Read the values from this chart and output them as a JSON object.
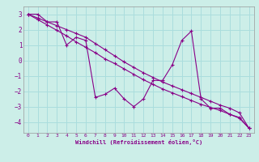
{
  "xlabel": "Windchill (Refroidissement éolien,°C)",
  "bg_color": "#cceee8",
  "grid_color": "#aadddd",
  "line_color": "#880088",
  "x_data": [
    0,
    1,
    2,
    3,
    4,
    5,
    6,
    7,
    8,
    9,
    10,
    11,
    12,
    13,
    14,
    15,
    16,
    17,
    18,
    19,
    20,
    21,
    22,
    23
  ],
  "y_jagged": [
    3.0,
    3.0,
    2.5,
    2.5,
    1.0,
    1.5,
    1.3,
    -2.4,
    -2.2,
    -1.8,
    -2.5,
    -3.0,
    -2.5,
    -1.3,
    -1.3,
    -0.3,
    1.3,
    1.9,
    -2.5,
    -3.1,
    -3.1,
    -3.5,
    -3.7,
    -4.4
  ],
  "y_line1": [
    3.0,
    2.65,
    2.3,
    1.95,
    1.6,
    1.2,
    0.85,
    0.5,
    0.1,
    -0.2,
    -0.55,
    -0.9,
    -1.25,
    -1.55,
    -1.85,
    -2.1,
    -2.35,
    -2.6,
    -2.85,
    -3.05,
    -3.25,
    -3.5,
    -3.75,
    -4.4
  ],
  "y_line2": [
    3.0,
    2.75,
    2.5,
    2.25,
    2.0,
    1.75,
    1.5,
    1.1,
    0.7,
    0.3,
    -0.1,
    -0.45,
    -0.8,
    -1.1,
    -1.4,
    -1.65,
    -1.9,
    -2.15,
    -2.4,
    -2.65,
    -2.9,
    -3.1,
    -3.4,
    -4.4
  ],
  "ylim": [
    -4.7,
    3.5
  ],
  "xlim": [
    -0.5,
    23.5
  ],
  "yticks": [
    -4,
    -3,
    -2,
    -1,
    0,
    1,
    2,
    3
  ],
  "xticks": [
    0,
    1,
    2,
    3,
    4,
    5,
    6,
    7,
    8,
    9,
    10,
    11,
    12,
    13,
    14,
    15,
    16,
    17,
    18,
    19,
    20,
    21,
    22,
    23
  ]
}
